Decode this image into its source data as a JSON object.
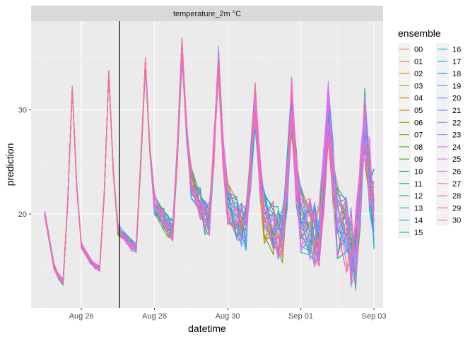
{
  "chart_data": {
    "type": "line",
    "facet_label": "temperature_2m °C",
    "xlabel": "datetime",
    "ylabel": "prediction",
    "x_ticks": [
      "Aug 26",
      "Aug 28",
      "Aug 30",
      "Sep 01",
      "Sep 03"
    ],
    "y_ticks": [
      "20",
      "30"
    ],
    "xlim": [
      "2025-08-24T15:00",
      "2025-09-03T06:00"
    ],
    "ylim": [
      11,
      38.5
    ],
    "vline_x": "2025-08-27T01:00",
    "grid": true,
    "legend_title": "ensemble",
    "legend_position": "right",
    "hours": [
      0,
      6,
      9,
      12,
      15,
      18,
      21,
      24
    ],
    "base_curve": {
      "x_day_start": [
        "2025-08-25",
        "2025-08-26",
        "2025-08-27",
        "2025-08-28",
        "2025-08-29",
        "2025-08-30",
        "2025-08-31",
        "2025-09-01",
        "2025-09-02",
        "2025-09-03"
      ],
      "day_values": [
        [
          20,
          15.0,
          14.0,
          13.5,
          21.0,
          32.0,
          22.5,
          17.0
        ],
        [
          17.0,
          15.5,
          15.0,
          14.8,
          22.0,
          33.5,
          24.0,
          18.5
        ],
        [
          18.5,
          17.5,
          17.0,
          16.8,
          25.0,
          34.5,
          26.0,
          21.0
        ],
        [
          21.0,
          19.5,
          18.8,
          18.5,
          26.0,
          35.8,
          28.0,
          23.0
        ],
        [
          23.0,
          21.0,
          19.7,
          19.5,
          26.0,
          34.5,
          26.0,
          21.0
        ],
        [
          21.0,
          19.5,
          19.0,
          18.7,
          24.0,
          30.5,
          24.0,
          19.5
        ],
        [
          19.5,
          18.5,
          18.0,
          17.8,
          23.0,
          30.5,
          23.5,
          19.5
        ],
        [
          19.5,
          18.5,
          18.2,
          18.0,
          23.0,
          30.0,
          24.0,
          19.5
        ],
        [
          19.5,
          17.8,
          16.8,
          16.5,
          22.0,
          28.5,
          24.0,
          20.0
        ],
        [
          20.0,
          20.0,
          20.0,
          20.0,
          20.0,
          20.0,
          20.0,
          20.0
        ]
      ]
    },
    "series": [
      {
        "name": "00",
        "color": "#F8766D"
      },
      {
        "name": "01",
        "color": "#F07E4E"
      },
      {
        "name": "02",
        "color": "#E58700"
      },
      {
        "name": "03",
        "color": "#D58F00"
      },
      {
        "name": "04",
        "color": "#C99800"
      },
      {
        "name": "05",
        "color": "#B8A000"
      },
      {
        "name": "06",
        "color": "#A3A500"
      },
      {
        "name": "07",
        "color": "#8CAB00"
      },
      {
        "name": "08",
        "color": "#6BB100"
      },
      {
        "name": "09",
        "color": "#39B600"
      },
      {
        "name": "10",
        "color": "#00BA38"
      },
      {
        "name": "11",
        "color": "#00BE67"
      },
      {
        "name": "12",
        "color": "#00BF7D"
      },
      {
        "name": "13",
        "color": "#00C0AF"
      },
      {
        "name": "14",
        "color": "#00BCD8"
      },
      {
        "name": "15",
        "color": "#00BFC4"
      },
      {
        "name": "16",
        "color": "#00B8E7"
      },
      {
        "name": "17",
        "color": "#00B0F6"
      },
      {
        "name": "18",
        "color": "#00A5FF"
      },
      {
        "name": "19",
        "color": "#35A2FF"
      },
      {
        "name": "20",
        "color": "#619CFF"
      },
      {
        "name": "21",
        "color": "#8A93FF"
      },
      {
        "name": "22",
        "color": "#9F8CFF"
      },
      {
        "name": "23",
        "color": "#B983FF"
      },
      {
        "name": "24",
        "color": "#C77CFF"
      },
      {
        "name": "25",
        "color": "#DB72FB"
      },
      {
        "name": "26",
        "color": "#E76BF3"
      },
      {
        "name": "27",
        "color": "#F564E3"
      },
      {
        "name": "28",
        "color": "#FD61D1"
      },
      {
        "name": "29",
        "color": "#FF62BC"
      },
      {
        "name": "30",
        "color": "#FF6C91"
      }
    ]
  },
  "colors": {
    "panel_bg": "#EBEBEB",
    "grid_major": "#FFFFFF",
    "strip_bg": "#D9D9D9",
    "vline": "#000000"
  }
}
